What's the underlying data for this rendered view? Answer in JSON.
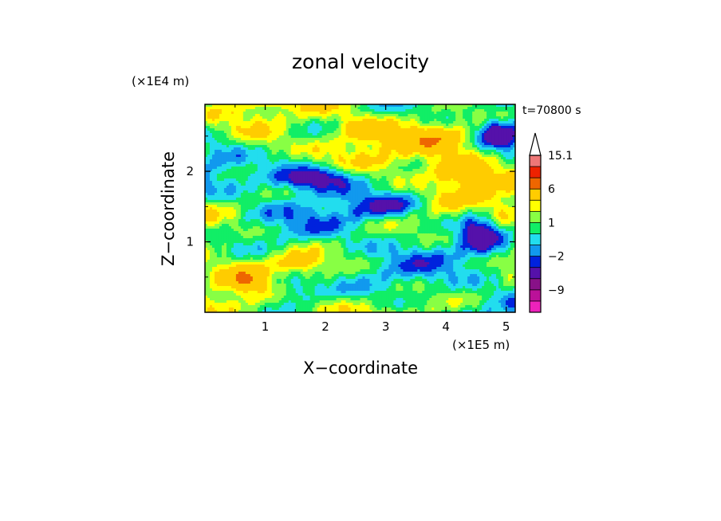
{
  "chart_data": {
    "type": "heatmap",
    "title": "zonal velocity",
    "xlabel": "X−coordinate",
    "ylabel": "Z−coordinate",
    "x_unit": "(×1E5 m)",
    "y_unit": "(×1E4 m)",
    "time_label": "t=70800 s",
    "xlim": [
      0,
      5.15
    ],
    "ylim": [
      0,
      2.95
    ],
    "x_ticks": [
      1,
      2,
      3,
      4,
      5
    ],
    "y_ticks": [
      1,
      2
    ],
    "x_tick_labels": [
      "1",
      "2",
      "3",
      "4",
      "5"
    ],
    "y_tick_labels": [
      "1",
      "2"
    ],
    "colorbar": {
      "levels": [
        -15,
        -12,
        -9,
        -6,
        -3,
        -2,
        -1,
        0,
        1,
        2,
        3,
        6,
        9,
        12,
        15.1
      ],
      "colors": [
        "#ee22bb",
        "#bb1199",
        "#881188",
        "#5511aa",
        "#0022dd",
        "#1199ee",
        "#22ddee",
        "#11ee66",
        "#88ff44",
        "#ffff00",
        "#ffcc00",
        "#ee6600",
        "#ee2200",
        "#ee7777",
        "#f7bbbb"
      ],
      "labels": [
        {
          "value": 15.1,
          "text": "15.1"
        },
        {
          "value": 6,
          "text": "6"
        },
        {
          "value": 1,
          "text": "1"
        },
        {
          "value": -2,
          "text": "−2"
        },
        {
          "value": -9,
          "text": "−9"
        }
      ],
      "extend": "max"
    },
    "field_description": "Turbulent zonal velocity field with horizontally elongated, tilted bands; mostly yellow/green (−1 to 3) with orange maxima near X≈4.2, Z≈2.0 and blue minima near X≈1.8, Z≈1.9 and X≈4.6, Z≈1.2"
  }
}
